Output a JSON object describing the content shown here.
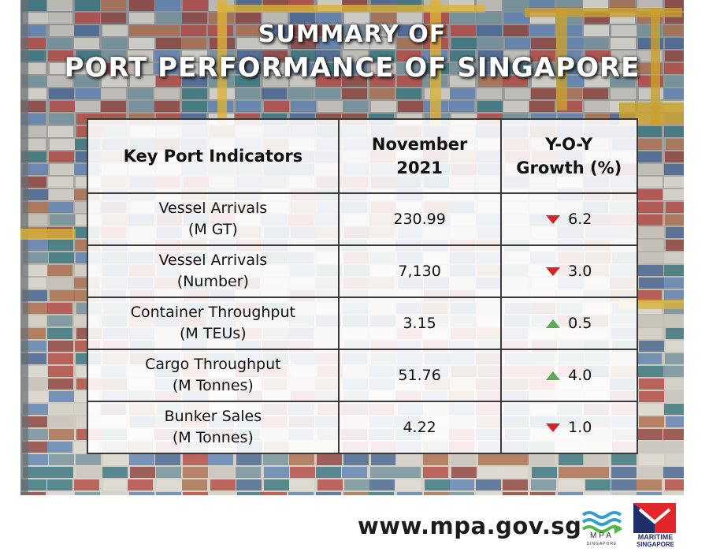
{
  "title": {
    "line1": "SUMMARY OF",
    "line2": "PORT PERFORMANCE OF SINGAPORE"
  },
  "table": {
    "headers": {
      "indicator": "Key Port Indicators",
      "period_line1": "November",
      "period_line2": "2021",
      "growth_line1": "Y-O-Y",
      "growth_line2": "Growth (%)"
    },
    "rows": [
      {
        "name": "Vessel Arrivals",
        "unit": "(M GT)",
        "value": "230.99",
        "direction": "down",
        "growth": "6.2"
      },
      {
        "name": "Vessel Arrivals",
        "unit": "(Number)",
        "value": "7,130",
        "direction": "down",
        "growth": "3.0"
      },
      {
        "name": "Container Throughput",
        "unit": "(M TEUs)",
        "value": "3.15",
        "direction": "up",
        "growth": "0.5"
      },
      {
        "name": "Cargo Throughput",
        "unit": "(M Tonnes)",
        "value": "51.76",
        "direction": "up",
        "growth": "4.0"
      },
      {
        "name": "Bunker Sales",
        "unit": "(M Tonnes)",
        "value": "4.22",
        "direction": "down",
        "growth": "1.0"
      }
    ]
  },
  "colors": {
    "down_arrow": "#d6232a",
    "up_arrow": "#5fa85a"
  },
  "footer": {
    "url": "www.mpa.gov.sg",
    "mpa_logo_text": "MPA",
    "mpa_logo_subtext": "SINGAPORE",
    "maritime_logo_line1": "MARITIME",
    "maritime_logo_line2": "SINGAPORE"
  }
}
